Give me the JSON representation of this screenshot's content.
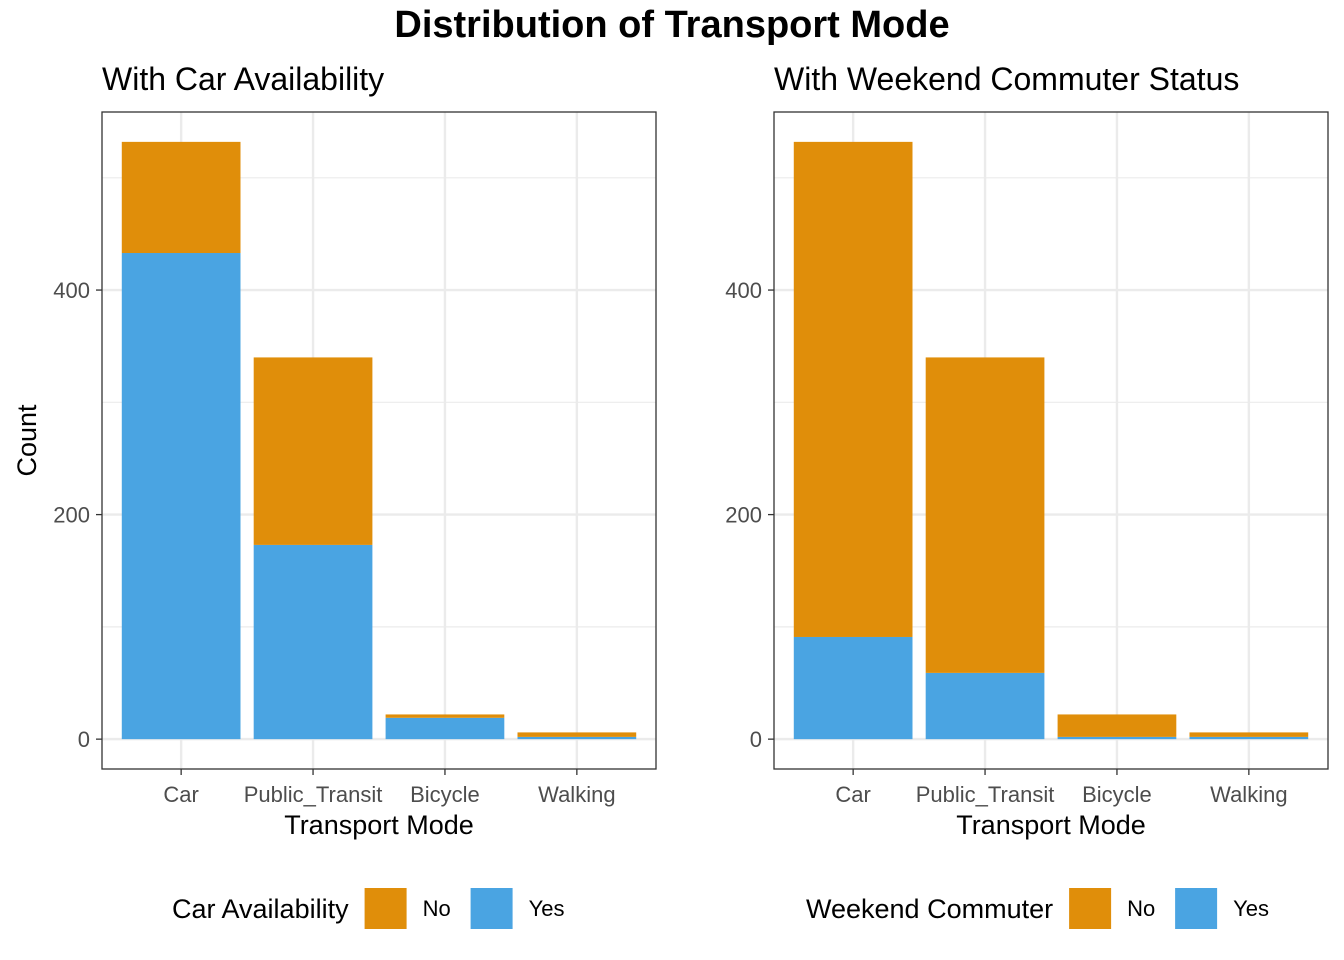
{
  "colors": {
    "No": "#E08E0A",
    "Yes": "#4AA4E2",
    "grid": "#EBEBEB",
    "border": "#333333"
  },
  "chart_data": {
    "title": "Distribution of Transport Mode",
    "panels": [
      {
        "type": "bar",
        "stacked": true,
        "subtitle": "With Car Availability",
        "xlabel": "Transport Mode",
        "ylabel": "Count",
        "categories": [
          "Car",
          "Public_Transit",
          "Bicycle",
          "Walking"
        ],
        "series": [
          {
            "name": "Yes",
            "values": [
              433,
              173,
              19,
              2
            ]
          },
          {
            "name": "No",
            "values": [
              99,
              167,
              3,
              4
            ]
          }
        ],
        "yticks": [
          0,
          200,
          400
        ],
        "ylim": [
          -26.6,
          558.6
        ],
        "grid": true,
        "legend": {
          "title": "Car Availability",
          "entries": [
            "No",
            "Yes"
          ],
          "position": "bottom"
        }
      },
      {
        "type": "bar",
        "stacked": true,
        "subtitle": "With Weekend Commuter Status",
        "xlabel": "Transport Mode",
        "ylabel": "",
        "categories": [
          "Car",
          "Public_Transit",
          "Bicycle",
          "Walking"
        ],
        "series": [
          {
            "name": "Yes",
            "values": [
              91,
              59,
              2,
              2
            ]
          },
          {
            "name": "No",
            "values": [
              441,
              281,
              20,
              4
            ]
          }
        ],
        "yticks": [
          0,
          200,
          400
        ],
        "ylim": [
          -26.6,
          558.6
        ],
        "grid": true,
        "legend": {
          "title": "Weekend Commuter",
          "entries": [
            "No",
            "Yes"
          ],
          "position": "bottom"
        }
      }
    ]
  }
}
